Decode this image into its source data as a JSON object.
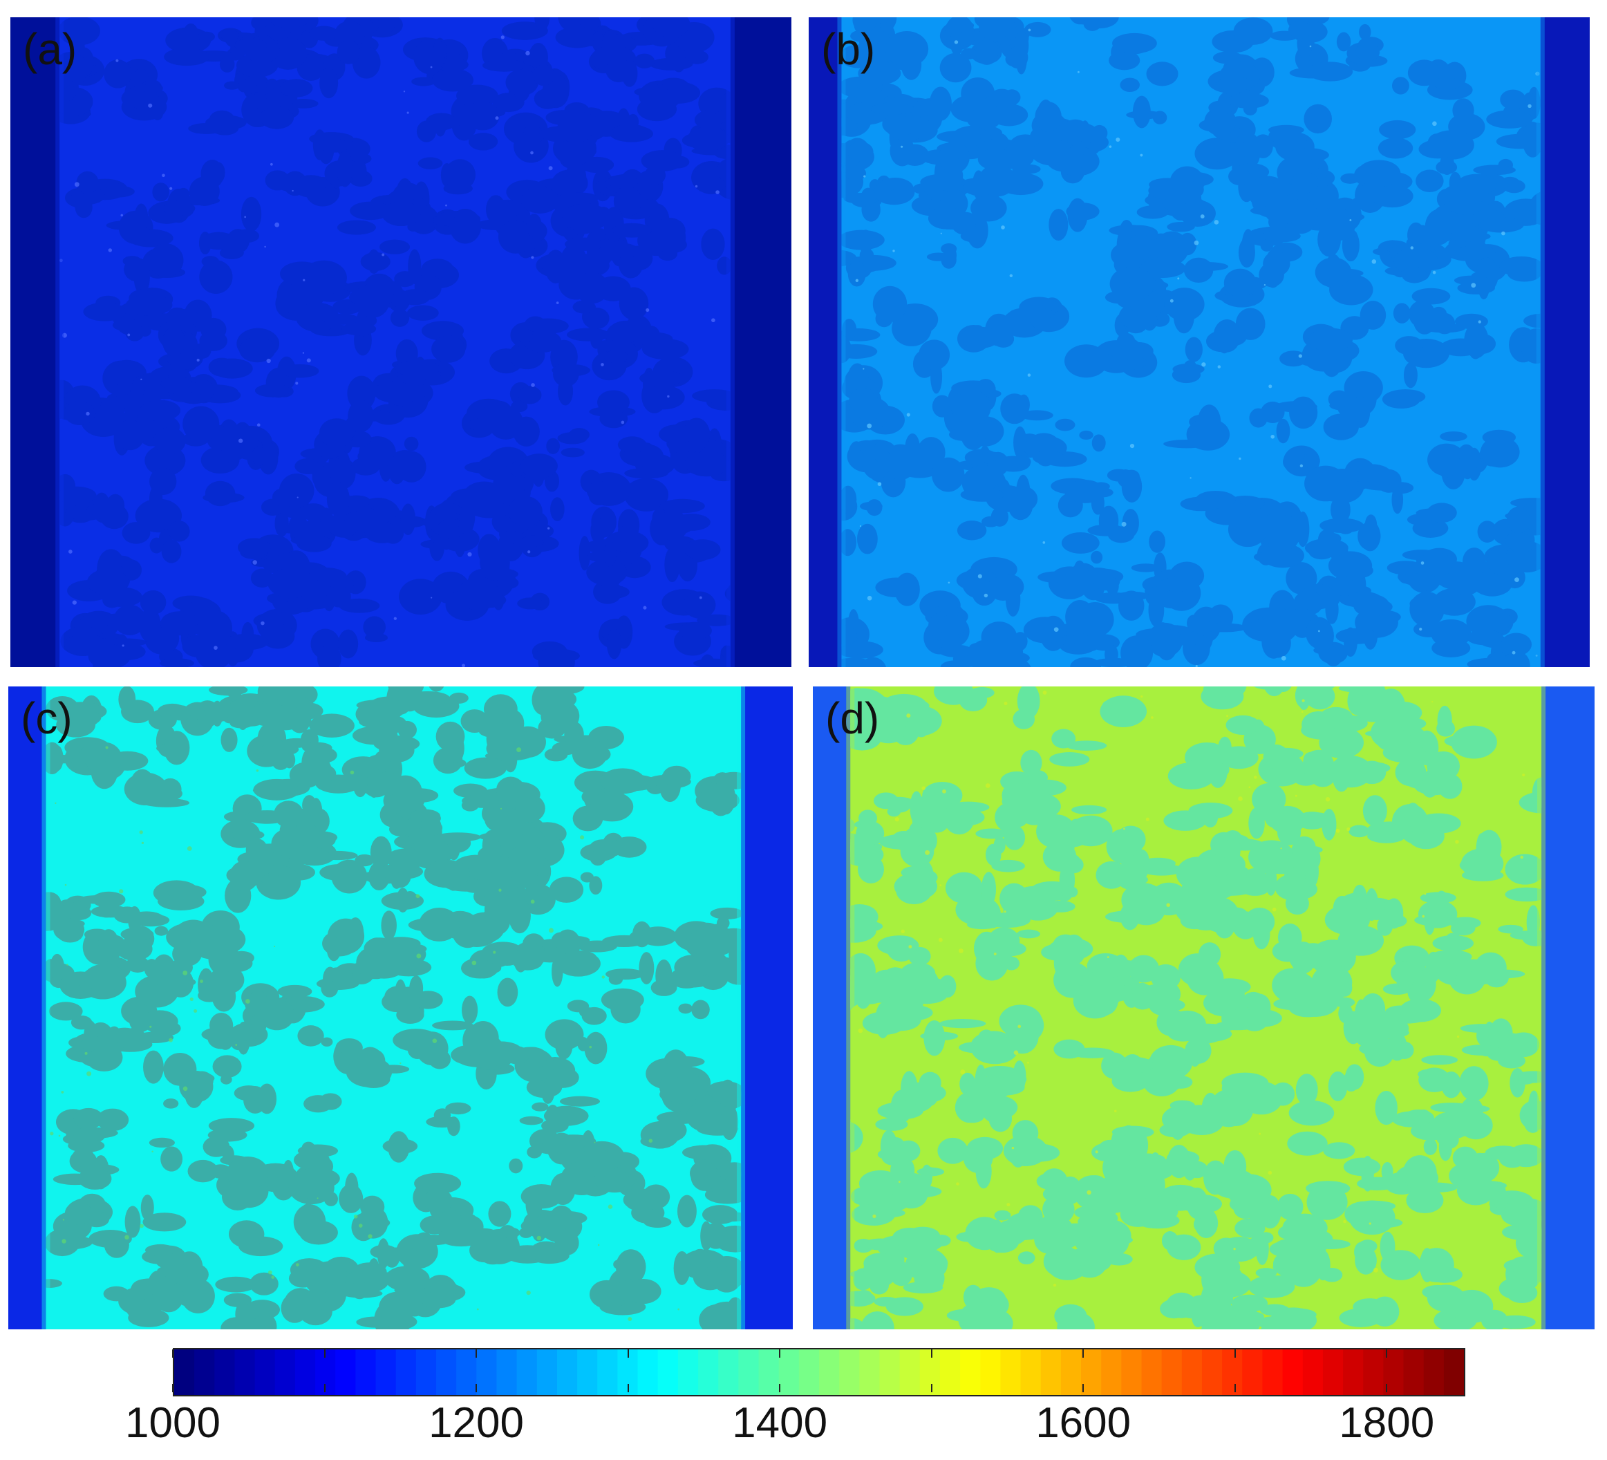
{
  "chart_data": {
    "type": "heatmap",
    "title": "",
    "panels": [
      {
        "label": "(a)",
        "edge_color": "#00109a",
        "base_color": "#0a2ee6",
        "blob_color": "#062ad0",
        "speck_color": "#4f6cff",
        "approx_value_range": [
          1050,
          1150
        ]
      },
      {
        "label": "(b)",
        "edge_color": "#0818b8",
        "base_color": "#0a96f6",
        "blob_color": "#0a7ae2",
        "speck_color": "#5fc6ff",
        "approx_value_range": [
          1150,
          1250
        ]
      },
      {
        "label": "(c)",
        "edge_color": "#0a28e6",
        "base_color": "#10f4ee",
        "blob_color": "#3aaea8",
        "speck_color": "#5fd86f",
        "approx_value_range": [
          1300,
          1350
        ]
      },
      {
        "label": "(d)",
        "edge_color": "#1a5af2",
        "base_color": "#a8f03e",
        "blob_color": "#64e6a0",
        "speck_color": "#cef028",
        "approx_value_range": [
          1400,
          1500
        ]
      }
    ],
    "colorbar": {
      "min": 1000,
      "max": 1850,
      "tick_values": [
        1000,
        1200,
        1400,
        1600,
        1800
      ],
      "tick_labels": [
        "1000",
        "1200",
        "1400",
        "1600",
        "1800"
      ],
      "minor_tick_values": [
        1100,
        1300,
        1500,
        1700
      ],
      "colormap": "jet",
      "orientation": "horizontal",
      "placement": "bottom"
    }
  }
}
